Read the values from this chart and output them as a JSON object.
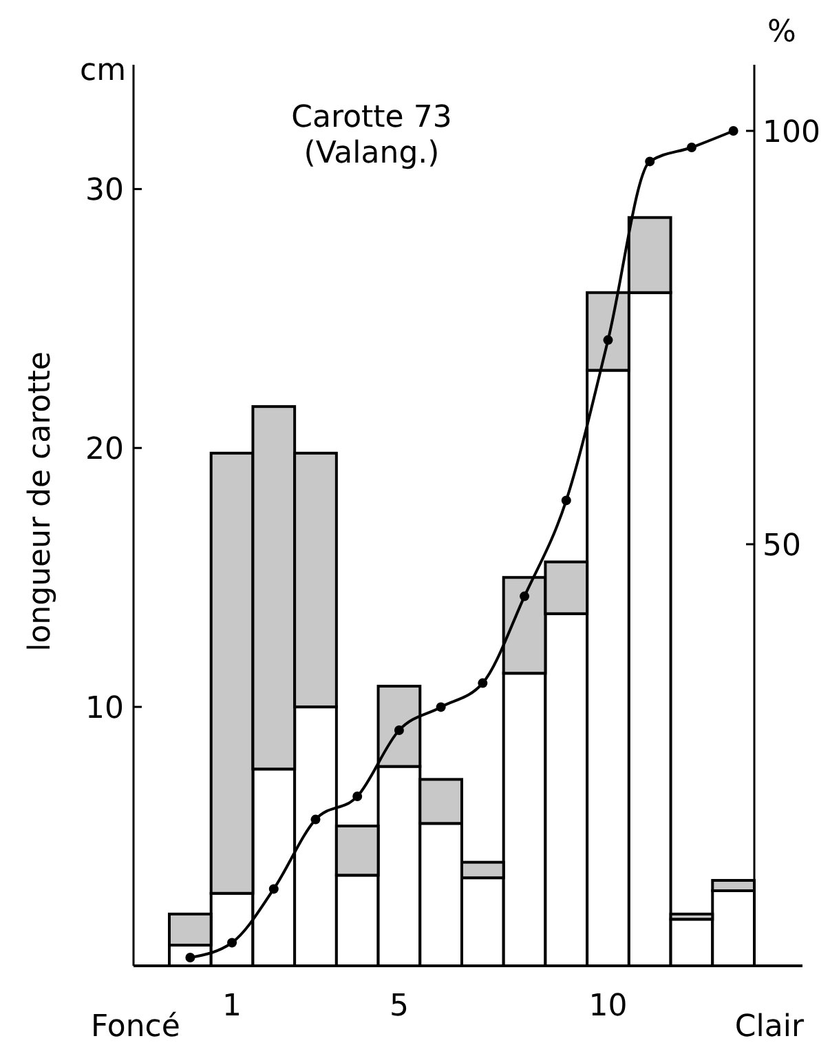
{
  "chart_data": {
    "type": "bar",
    "stacked": true,
    "title": "Carotte 73",
    "subtitle": "(Valang.)",
    "ylabel": "longueur de carotte",
    "y2label": "%",
    "annotations": [
      "cm",
      "Foncé",
      "Clair"
    ],
    "categories": [
      null,
      "1",
      null,
      null,
      null,
      "5",
      null,
      null,
      null,
      null,
      "10",
      null,
      null,
      null
    ],
    "ylim": [
      0,
      34.8
    ],
    "yticks": [
      10,
      20,
      30
    ],
    "y2lim": [
      -1,
      108
    ],
    "y2ticks": [
      50,
      100
    ],
    "grid": false,
    "series": [
      {
        "color": "#ffffff",
        "values": [
          0.8,
          2.8,
          7.6,
          10,
          3.5,
          7.7,
          5.5,
          3.4,
          11.3,
          13.6,
          23,
          26,
          1.8,
          2.9
        ]
      },
      {
        "color": "#c8c8c8",
        "values": [
          1.2,
          17,
          14,
          9.8,
          1.9,
          3.1,
          1.7,
          0.6,
          3.7,
          2,
          3,
          2.9,
          0.2,
          0.4
        ]
      },
      {
        "type": "line",
        "axis": "y2",
        "color": "#000000",
        "marker": "circle",
        "line_style": "solid",
        "values": [
          0,
          1.8,
          8.3,
          16.7,
          19.5,
          27.5,
          30.3,
          33.2,
          43.7,
          55.3,
          74.7,
          96.3,
          98,
          100
        ]
      }
    ]
  }
}
